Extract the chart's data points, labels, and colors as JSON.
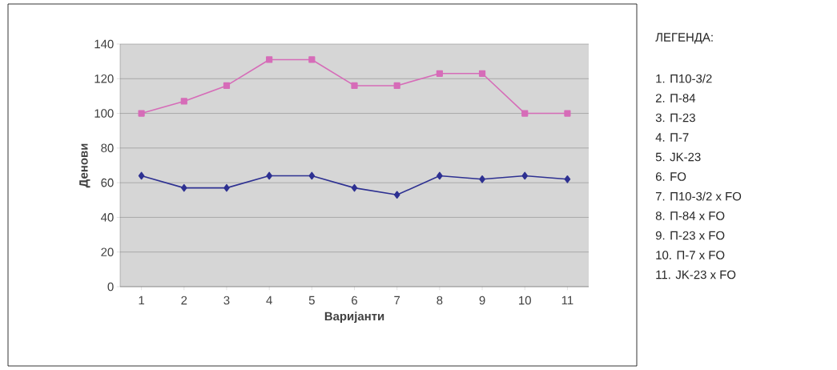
{
  "chart_data": {
    "type": "line",
    "xlabel": "Варијанти",
    "ylabel": "Денови",
    "categories": [
      "1",
      "2",
      "3",
      "4",
      "5",
      "6",
      "7",
      "8",
      "9",
      "10",
      "11"
    ],
    "series": [
      {
        "color": "#2e3192",
        "marker": "diamond",
        "values": [
          64,
          57,
          57,
          64,
          64,
          57,
          53,
          64,
          62,
          64,
          62
        ]
      },
      {
        "color": "#d66cb8",
        "marker": "square",
        "values": [
          100,
          107,
          116,
          131,
          131,
          116,
          116,
          123,
          123,
          100,
          100
        ]
      }
    ],
    "ylim": [
      0,
      140
    ],
    "yticks": [
      0,
      20,
      40,
      60,
      80,
      100,
      120,
      140
    ],
    "grid": "y",
    "annotations": [
      "ЛЕГЕНДА:",
      "1. П10-3/2",
      "2. П-84",
      "3. П-23",
      "4. П-7",
      "5. JK-23",
      "6. FO",
      "7. П10-3/2 x FO",
      "8. П-84 x FO",
      "9. П-23 x FO",
      "10. П-7 x FO",
      "11. JK-23 x FO"
    ]
  }
}
